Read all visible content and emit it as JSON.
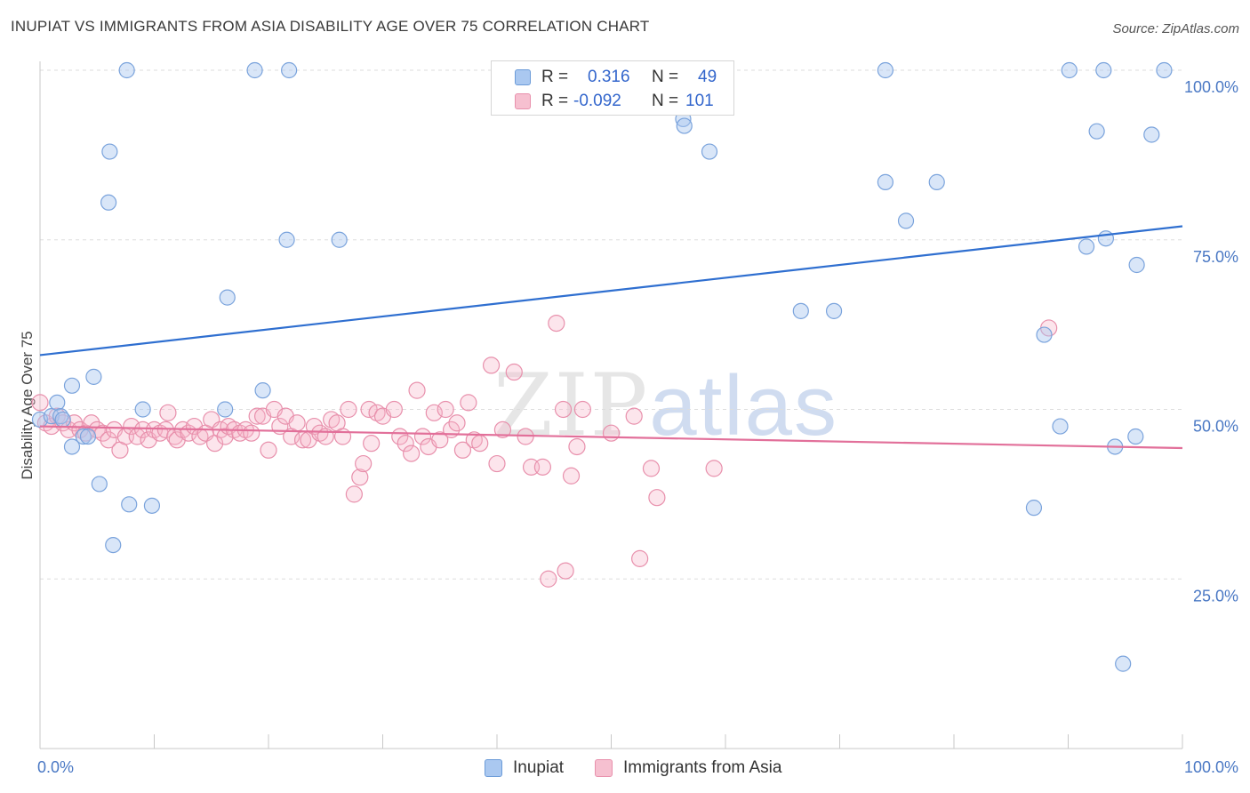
{
  "title": "INUPIAT VS IMMIGRANTS FROM ASIA DISABILITY AGE OVER 75 CORRELATION CHART",
  "source": "Source: ZipAtlas.com",
  "watermark": {
    "zip": "ZIP",
    "atlas": "atlas"
  },
  "legend": {
    "rows": [
      {
        "r_label": "R =",
        "r_value": "0.316",
        "n_label": "N =",
        "n_value": "49",
        "color": "#aac8f0",
        "stroke": "#6b9bd8"
      },
      {
        "r_label": "R =",
        "r_value": "-0.092",
        "n_label": "N =",
        "n_value": "101",
        "color": "#f6c0d0",
        "stroke": "#e890ac"
      }
    ]
  },
  "bottom_legend": {
    "series1": "Inupiat",
    "series2": "Immigrants from Asia"
  },
  "colors": {
    "inupiat_fill": "rgba(170,200,240,0.45)",
    "inupiat_stroke": "#7aa3dc",
    "inupiat_line": "#2f6fd0",
    "asia_fill": "rgba(246,180,200,0.35)",
    "asia_stroke": "#e890ac",
    "asia_line": "#e2709a",
    "tick_label": "#4a78c4",
    "grid": "#dddddd"
  },
  "chart_data": {
    "type": "scatter",
    "title": "INUPIAT VS IMMIGRANTS FROM ASIA DISABILITY AGE OVER 75 CORRELATION CHART",
    "xlabel": "",
    "ylabel": "Disability Age Over 75",
    "xlim": [
      0,
      100
    ],
    "ylim": [
      0,
      100
    ],
    "x_tick_labels": [
      "0.0%",
      "100.0%"
    ],
    "y_tick_labels": [
      "25.0%",
      "50.0%",
      "75.0%",
      "100.0%"
    ],
    "y_ticks": [
      25,
      50,
      75,
      100
    ],
    "grid": true,
    "series": [
      {
        "name": "Inupiat",
        "R": 0.316,
        "N": 49,
        "trend": {
          "x": [
            0,
            100
          ],
          "y": [
            58.0,
            77.0
          ]
        },
        "points": [
          [
            0,
            48.5
          ],
          [
            1,
            49
          ],
          [
            1.5,
            51
          ],
          [
            1.8,
            49
          ],
          [
            2.8,
            53.5
          ],
          [
            2,
            48.5
          ],
          [
            3.8,
            46
          ],
          [
            2.8,
            44.5
          ],
          [
            4.7,
            54.8
          ],
          [
            4.2,
            46
          ],
          [
            5.2,
            39
          ],
          [
            6.4,
            30
          ],
          [
            7.6,
            100
          ],
          [
            7.8,
            36
          ],
          [
            6.1,
            88
          ],
          [
            6.0,
            80.5
          ],
          [
            9,
            50
          ],
          [
            9.8,
            35.8
          ],
          [
            16.2,
            50
          ],
          [
            16.4,
            66.5
          ],
          [
            18.8,
            100
          ],
          [
            19.5,
            52.8
          ],
          [
            21.6,
            75
          ],
          [
            21.8,
            100
          ],
          [
            26.2,
            75
          ],
          [
            52.5,
            95.5
          ],
          [
            56.3,
            92.8
          ],
          [
            56.4,
            91.8
          ],
          [
            58.6,
            88
          ],
          [
            66.6,
            64.5
          ],
          [
            69.5,
            64.5
          ],
          [
            74,
            100
          ],
          [
            74,
            83.5
          ],
          [
            75.8,
            77.8
          ],
          [
            78.5,
            83.5
          ],
          [
            87,
            35.5
          ],
          [
            87.9,
            61
          ],
          [
            89.3,
            47.5
          ],
          [
            90.1,
            100
          ],
          [
            91.6,
            74
          ],
          [
            92.5,
            91
          ],
          [
            93.1,
            100
          ],
          [
            93.3,
            75.2
          ],
          [
            94.1,
            44.5
          ],
          [
            94.8,
            12.5
          ],
          [
            95.9,
            46
          ],
          [
            96.0,
            71.3
          ],
          [
            97.3,
            90.5
          ],
          [
            98.4,
            100
          ]
        ]
      },
      {
        "name": "Immigrants from Asia",
        "R": -0.092,
        "N": 101,
        "trend": {
          "x": [
            0,
            100
          ],
          "y": [
            47.5,
            44.3
          ]
        },
        "points": [
          [
            0,
            51
          ],
          [
            0.5,
            48
          ],
          [
            1,
            47.5
          ],
          [
            1.5,
            49
          ],
          [
            2,
            48
          ],
          [
            2.5,
            47
          ],
          [
            3,
            48
          ],
          [
            3.5,
            47
          ],
          [
            4,
            46.5
          ],
          [
            4.5,
            48
          ],
          [
            5,
            47
          ],
          [
            5.5,
            46.5
          ],
          [
            6,
            45.5
          ],
          [
            6.5,
            47
          ],
          [
            7,
            44
          ],
          [
            7.5,
            46
          ],
          [
            8,
            47.5
          ],
          [
            8.5,
            46
          ],
          [
            9,
            47
          ],
          [
            9.5,
            45.5
          ],
          [
            10,
            47
          ],
          [
            10.5,
            46.5
          ],
          [
            11,
            47
          ],
          [
            11.2,
            49.5
          ],
          [
            11.8,
            46
          ],
          [
            12,
            45.5
          ],
          [
            12.5,
            47
          ],
          [
            13,
            46.5
          ],
          [
            13.5,
            47.5
          ],
          [
            14,
            46
          ],
          [
            14.5,
            46.5
          ],
          [
            15,
            48.5
          ],
          [
            15.3,
            45
          ],
          [
            15.8,
            47
          ],
          [
            16.2,
            46
          ],
          [
            16.5,
            47.5
          ],
          [
            17,
            47
          ],
          [
            17.5,
            46.5
          ],
          [
            18,
            47
          ],
          [
            18.5,
            46.5
          ],
          [
            19,
            49
          ],
          [
            19.5,
            49
          ],
          [
            20,
            44
          ],
          [
            20.5,
            50
          ],
          [
            21,
            47.5
          ],
          [
            21.5,
            49
          ],
          [
            22,
            46
          ],
          [
            22.5,
            48
          ],
          [
            23,
            45.5
          ],
          [
            23.5,
            45.5
          ],
          [
            24,
            47.5
          ],
          [
            24.5,
            46.5
          ],
          [
            25,
            46
          ],
          [
            25.5,
            48.5
          ],
          [
            26,
            48
          ],
          [
            26.5,
            46
          ],
          [
            27,
            50
          ],
          [
            27.5,
            37.5
          ],
          [
            28,
            40
          ],
          [
            28.3,
            42
          ],
          [
            28.8,
            50
          ],
          [
            29,
            45
          ],
          [
            29.5,
            49.5
          ],
          [
            30,
            49
          ],
          [
            31,
            50
          ],
          [
            31.5,
            46
          ],
          [
            32,
            45
          ],
          [
            32.5,
            43.5
          ],
          [
            33,
            52.8
          ],
          [
            33.5,
            46
          ],
          [
            34,
            44.5
          ],
          [
            34.5,
            49.5
          ],
          [
            35,
            45.5
          ],
          [
            35.5,
            50
          ],
          [
            36,
            47
          ],
          [
            36.5,
            48
          ],
          [
            37,
            44
          ],
          [
            37.5,
            51
          ],
          [
            38,
            45.5
          ],
          [
            38.5,
            45
          ],
          [
            39.5,
            56.5
          ],
          [
            40,
            42
          ],
          [
            40.5,
            47
          ],
          [
            41.5,
            55.5
          ],
          [
            42.5,
            46
          ],
          [
            43,
            41.5
          ],
          [
            44,
            41.5
          ],
          [
            44.5,
            25
          ],
          [
            45.2,
            62.7
          ],
          [
            45.8,
            50
          ],
          [
            46,
            26.2
          ],
          [
            46.5,
            40.2
          ],
          [
            47,
            44.5
          ],
          [
            47.5,
            50
          ],
          [
            50,
            46.5
          ],
          [
            52,
            49
          ],
          [
            52.5,
            28
          ],
          [
            53.5,
            41.3
          ],
          [
            54,
            37
          ],
          [
            59,
            41.3
          ],
          [
            88.3,
            62
          ]
        ]
      }
    ]
  }
}
